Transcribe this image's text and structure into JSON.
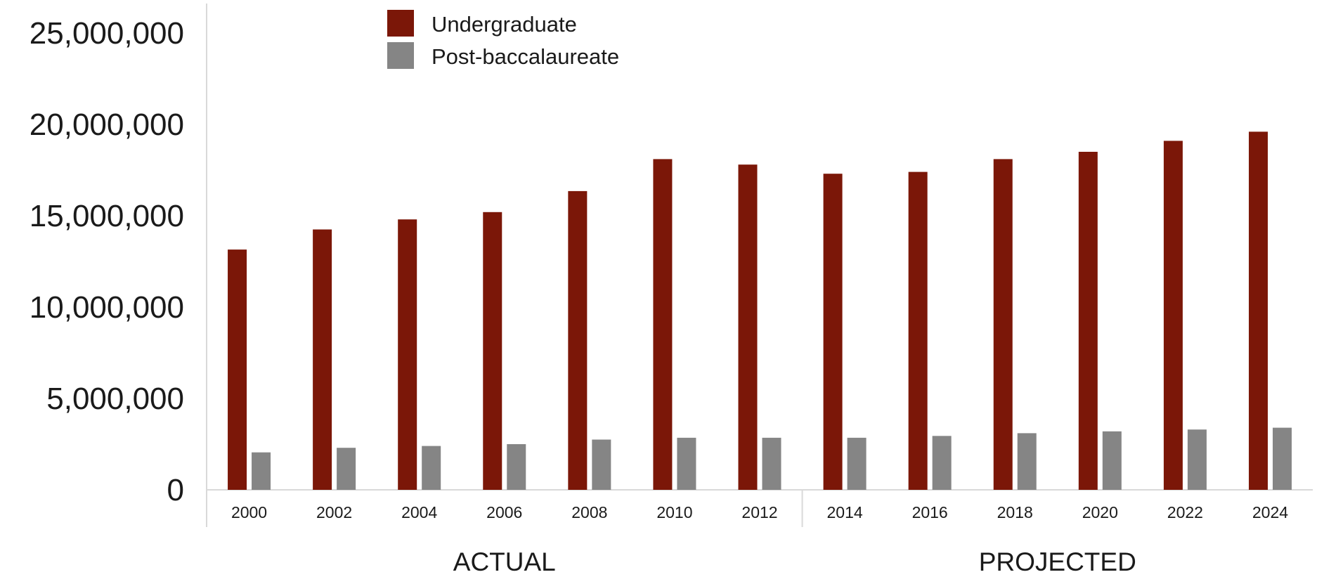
{
  "chart_data": {
    "type": "bar",
    "categories": [
      "2000",
      "2002",
      "2004",
      "2006",
      "2008",
      "2010",
      "2012",
      "2014",
      "2016",
      "2018",
      "2020",
      "2022",
      "2024"
    ],
    "series": [
      {
        "name": "Undergraduate",
        "color": "#7b1708",
        "values": [
          13150000,
          14250000,
          14800000,
          15200000,
          16350000,
          18100000,
          17800000,
          17300000,
          17400000,
          18100000,
          18500000,
          19100000,
          19600000
        ]
      },
      {
        "name": "Post-baccalaureate",
        "color": "#858585",
        "values": [
          2050000,
          2300000,
          2400000,
          2500000,
          2750000,
          2850000,
          2850000,
          2850000,
          2950000,
          3100000,
          3200000,
          3300000,
          3400000
        ]
      }
    ],
    "ylim": [
      0,
      25000000
    ],
    "yticks": [
      0,
      5000000,
      10000000,
      15000000,
      20000000,
      25000000
    ],
    "ytick_labels": [
      "0",
      "5,000,000",
      "10,000,000",
      "15,000,000",
      "20,000,000",
      "25,000,000"
    ],
    "groups": [
      {
        "label": "ACTUAL",
        "categories": [
          "2000",
          "2002",
          "2004",
          "2006",
          "2008",
          "2010",
          "2012"
        ]
      },
      {
        "label": "PROJECTED",
        "categories": [
          "2014",
          "2016",
          "2018",
          "2020",
          "2022",
          "2024"
        ]
      }
    ],
    "legend_position": "top-left",
    "grid": false
  }
}
